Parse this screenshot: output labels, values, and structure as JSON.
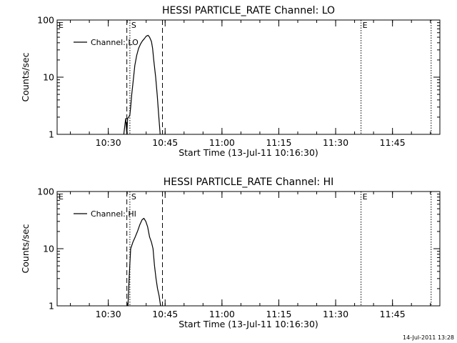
{
  "chart_data": [
    {
      "type": "line",
      "title": "HESSI PARTICLE_RATE Channel: LO",
      "xlabel": "Start Time (13-Jul-11 10:16:30)",
      "ylabel": "Counts/sec",
      "x_unit": "minutes after 10:16:30",
      "xlim": [
        0,
        101
      ],
      "ylim": [
        1,
        100
      ],
      "yscale": "log",
      "grid": false,
      "legend_position": "top-left",
      "x_ticks": [
        {
          "label": "10:30",
          "value": 13.5
        },
        {
          "label": "10:45",
          "value": 28.5
        },
        {
          "label": "11:00",
          "value": 43.5
        },
        {
          "label": "11:15",
          "value": 58.5
        },
        {
          "label": "11:30",
          "value": 73.5
        },
        {
          "label": "11:45",
          "value": 88.5
        }
      ],
      "y_ticks": [
        {
          "label": "1",
          "value": 1
        },
        {
          "label": "10",
          "value": 10
        },
        {
          "label": "100",
          "value": 100
        }
      ],
      "series": [
        {
          "name": "Channel: LO",
          "color": "#000000",
          "x": [
            17.6,
            17.9,
            18.1,
            18.4,
            18.6,
            18.9,
            19.2,
            19.4,
            19.7,
            20.1,
            20.5,
            21.0,
            21.5,
            22.0,
            22.5,
            23.0,
            23.5,
            24.0,
            24.4,
            24.9,
            25.2,
            25.5,
            26.0,
            26.4,
            26.8,
            27.2
          ],
          "y": [
            1.0,
            1.5,
            1.9,
            1.0,
            1.9,
            2.0,
            2.2,
            3.0,
            5.0,
            9.0,
            16.0,
            24.0,
            32.0,
            38.0,
            43.0,
            47.0,
            52.0,
            54.0,
            50.0,
            42.0,
            32.0,
            20.0,
            10.0,
            5.0,
            2.2,
            1.0
          ]
        }
      ],
      "markers": [
        {
          "label": "E",
          "value": 0,
          "style": "dotted"
        },
        {
          "label": "S",
          "value": 19.2,
          "style": "dotted"
        },
        {
          "label": "",
          "value": 18.4,
          "style": "dashed"
        },
        {
          "label": "",
          "value": 27.8,
          "style": "dashed"
        },
        {
          "label": "E",
          "value": 80.2,
          "style": "dotted"
        },
        {
          "label": "",
          "value": 98.7,
          "style": "dotted"
        }
      ]
    },
    {
      "type": "line",
      "title": "HESSI PARTICLE_RATE Channel: HI",
      "xlabel": "Start Time (13-Jul-11 10:16:30)",
      "ylabel": "Counts/sec",
      "x_unit": "minutes after 10:16:30",
      "xlim": [
        0,
        101
      ],
      "ylim": [
        1,
        100
      ],
      "yscale": "log",
      "grid": false,
      "legend_position": "top-left",
      "x_ticks": [
        {
          "label": "10:30",
          "value": 13.5
        },
        {
          "label": "10:45",
          "value": 28.5
        },
        {
          "label": "11:00",
          "value": 43.5
        },
        {
          "label": "11:15",
          "value": 58.5
        },
        {
          "label": "11:30",
          "value": 73.5
        },
        {
          "label": "11:45",
          "value": 88.5
        }
      ],
      "y_ticks": [
        {
          "label": "1",
          "value": 1
        },
        {
          "label": "10",
          "value": 10
        },
        {
          "label": "100",
          "value": 100
        }
      ],
      "series": [
        {
          "name": "Channel: HI",
          "color": "#000000",
          "x": [
            18.7,
            19.0,
            19.4,
            20.0,
            20.6,
            21.2,
            21.8,
            22.4,
            22.9,
            23.4,
            23.9,
            24.4,
            24.9,
            25.3,
            25.7,
            26.1,
            26.5,
            26.9,
            27.3
          ],
          "y": [
            1.0,
            3.0,
            10.0,
            13.0,
            16.0,
            20.0,
            26.0,
            32.0,
            34.0,
            30.0,
            24.0,
            16.0,
            13.0,
            10.0,
            5.0,
            3.0,
            2.0,
            1.5,
            1.0
          ]
        }
      ],
      "markers": [
        {
          "label": "E",
          "value": 0,
          "style": "dotted"
        },
        {
          "label": "S",
          "value": 19.2,
          "style": "dotted"
        },
        {
          "label": "",
          "value": 18.4,
          "style": "dashed"
        },
        {
          "label": "",
          "value": 27.8,
          "style": "dashed"
        },
        {
          "label": "E",
          "value": 80.2,
          "style": "dotted"
        },
        {
          "label": "",
          "value": 98.7,
          "style": "dotted"
        }
      ]
    }
  ],
  "footer": {
    "timestamp": "14-Jul-2011 13:28"
  }
}
